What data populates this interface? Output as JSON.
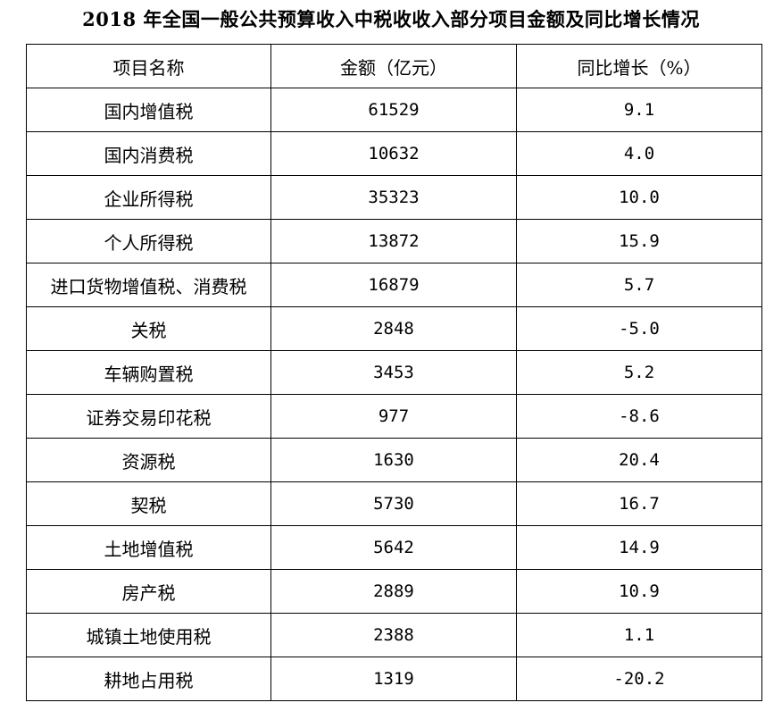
{
  "title": "2018 年全国一般公共预算收入中税收收入部分项目金额及同比增长情况",
  "table": {
    "headers": [
      "项目名称",
      "金额（亿元）",
      "同比增长（%）"
    ],
    "rows": [
      [
        "国内增值税",
        "61529",
        "9.1"
      ],
      [
        "国内消费税",
        "10632",
        "4.0"
      ],
      [
        "企业所得税",
        "35323",
        "10.0"
      ],
      [
        "个人所得税",
        "13872",
        "15.9"
      ],
      [
        "进口货物增值税、消费税",
        "16879",
        "5.7"
      ],
      [
        "关税",
        "2848",
        "-5.0"
      ],
      [
        "车辆购置税",
        "3453",
        "5.2"
      ],
      [
        "证券交易印花税",
        "977",
        "-8.6"
      ],
      [
        "资源税",
        "1630",
        "20.4"
      ],
      [
        "契税",
        "5730",
        "16.7"
      ],
      [
        "土地增值税",
        "5642",
        "14.9"
      ],
      [
        "房产税",
        "2889",
        "10.9"
      ],
      [
        "城镇土地使用税",
        "2388",
        "1.1"
      ],
      [
        "耕地占用税",
        "1319",
        "-20.2"
      ]
    ]
  }
}
